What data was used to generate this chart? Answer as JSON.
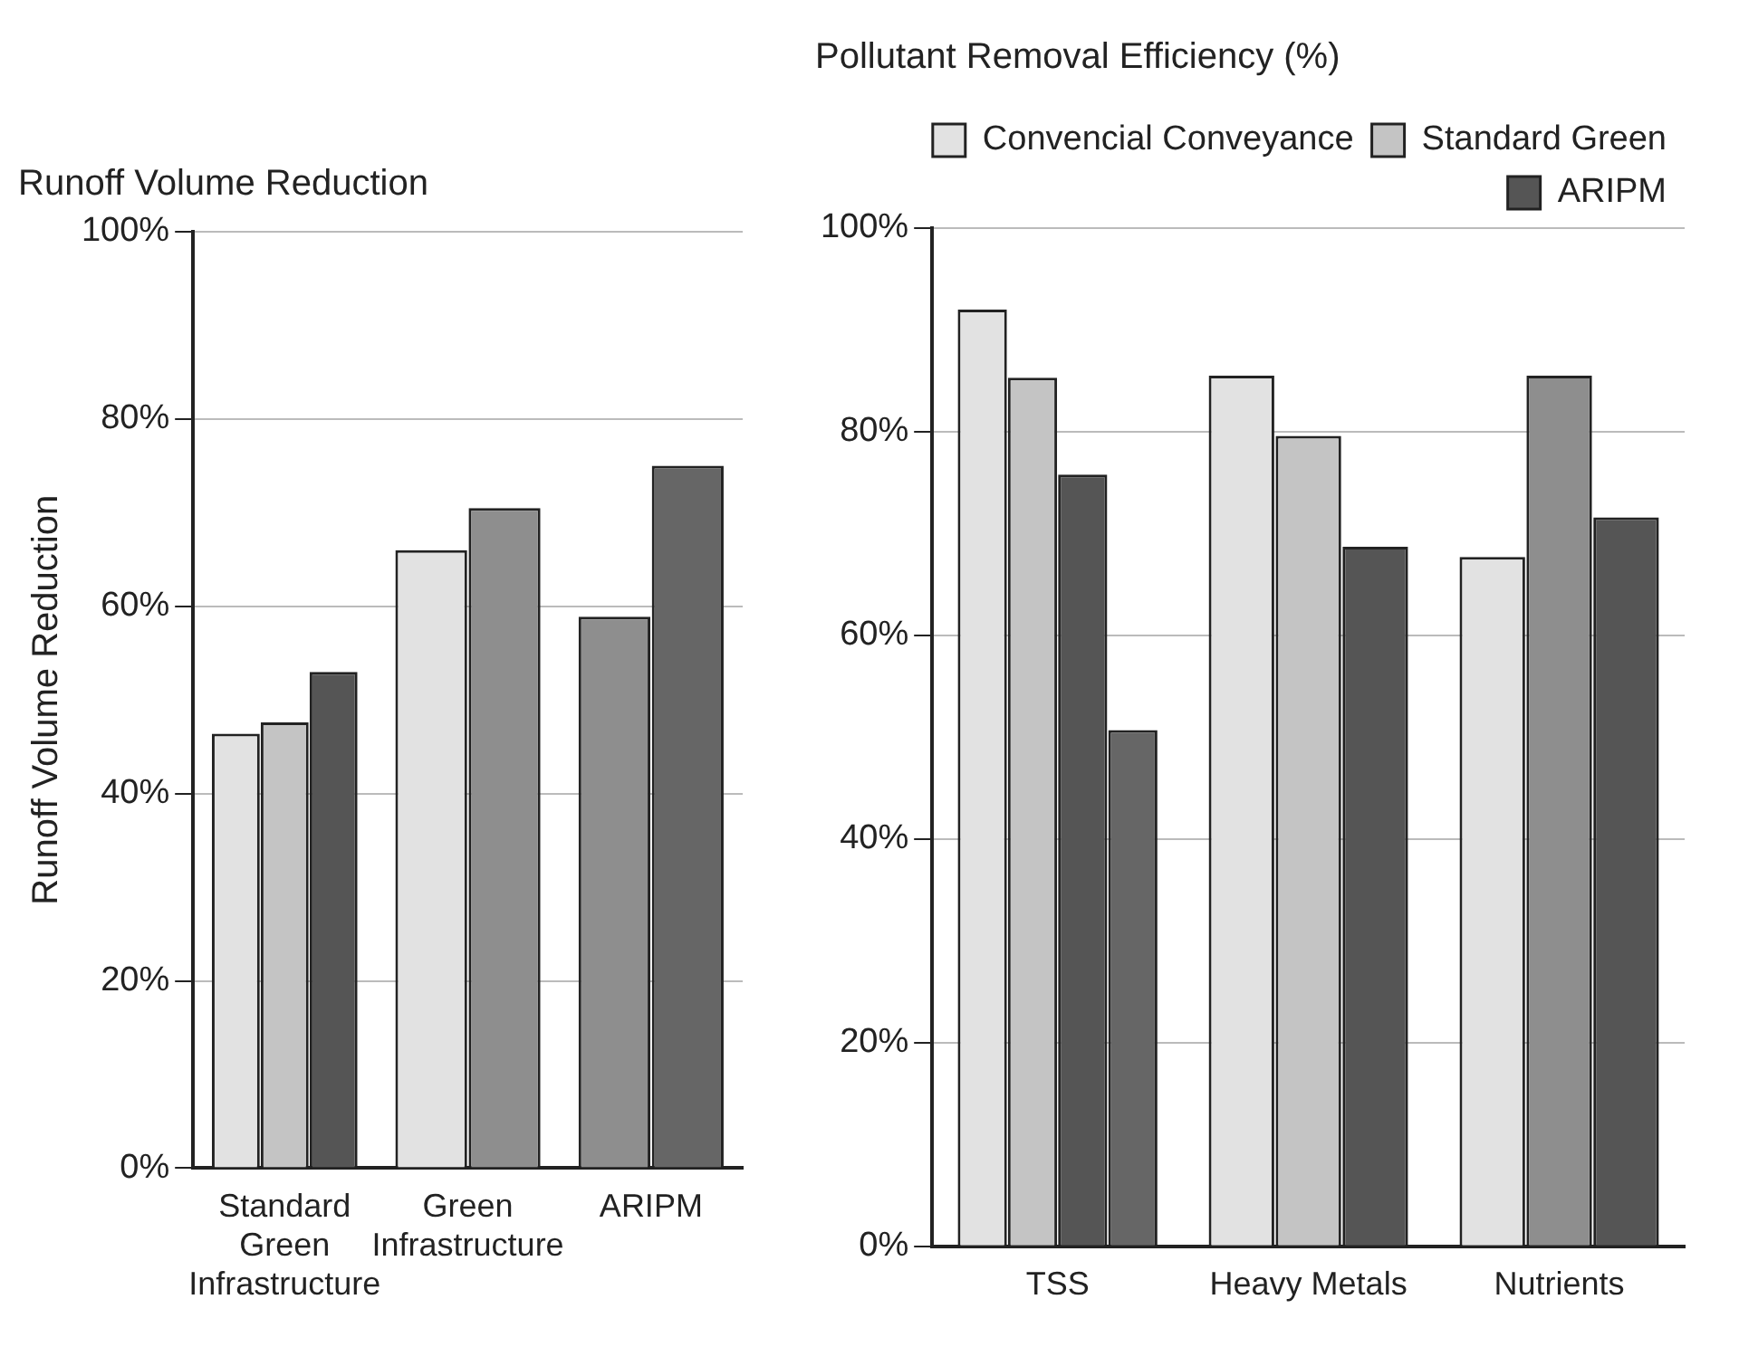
{
  "chart_data": [
    {
      "type": "bar",
      "title": "Runoff Volume Reduction",
      "ylabel": "Runoff Volume Reduction",
      "categories": [
        "Standard Green Infrastructure",
        "Green Infrastructure",
        "ARIPM"
      ],
      "series": [
        {
          "colors": [
            "#e2e2e2",
            "#e2e2e2",
            "#e2e2e2"
          ],
          "color": "#e2e2e2",
          "values": [
            46.4,
            66,
            null
          ]
        },
        {
          "colors": [
            "#c4c4c4",
            "#8e8e8e",
            "#8e8e8e"
          ],
          "color": "#c4c4c4",
          "values": [
            47.6,
            70.5,
            58.9
          ]
        },
        {
          "colors": [
            "#555555",
            "#555555",
            "#666666"
          ],
          "color": "#555555",
          "values": [
            53,
            null,
            75
          ]
        }
      ],
      "ylim": [
        0,
        100
      ],
      "yticks": [
        {
          "value": 0,
          "label": "0%"
        },
        {
          "value": 20,
          "label": "20%"
        },
        {
          "value": 40,
          "label": "40%"
        },
        {
          "value": 60,
          "label": "60%"
        },
        {
          "value": 80,
          "label": "80%"
        },
        {
          "value": 100,
          "label": "100%"
        }
      ],
      "grid": "y",
      "legend": false
    },
    {
      "type": "bar",
      "title": "Pollutant Removal Efficiency (%)",
      "categories": [
        "TSS",
        "Heavy Metals",
        "Nutrients"
      ],
      "series": [
        {
          "name": "Convencial Conveyance",
          "color": "#e2e2e2",
          "colors": [
            "#e2e2e2",
            "#e2e2e2",
            "#e2e2e2"
          ],
          "values": [
            92,
            85.5,
            67.7
          ]
        },
        {
          "name": "Standard Green",
          "color": "#c4c4c4",
          "colors": [
            "#c4c4c4",
            "#c4c4c4",
            "#8e8e8e"
          ],
          "values": [
            85.3,
            79.6,
            85.5
          ]
        },
        {
          "name": "ARIPM",
          "color": "#555555",
          "colors": [
            "#555555",
            "#555555",
            "#555555"
          ],
          "values": [
            75.8,
            68.7,
            71.6
          ]
        },
        {
          "colors": [
            "#666666",
            null,
            null
          ],
          "color": "#666666",
          "values": [
            50.7,
            null,
            null
          ]
        }
      ],
      "ylim": [
        0,
        100
      ],
      "yticks": [
        {
          "value": 0,
          "label": "0%"
        },
        {
          "value": 20,
          "label": "20%"
        },
        {
          "value": 40,
          "label": "40%"
        },
        {
          "value": 60,
          "label": "60%"
        },
        {
          "value": 80,
          "label": "80%"
        },
        {
          "value": 100,
          "label": "100%"
        }
      ],
      "grid": "y",
      "legend": "top right"
    }
  ]
}
